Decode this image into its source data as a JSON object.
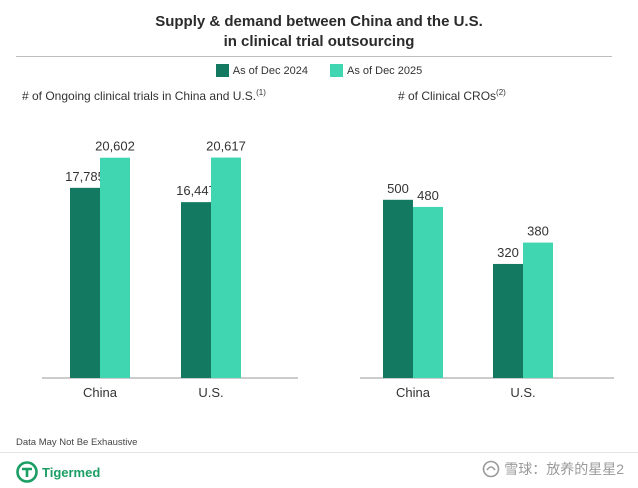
{
  "title_line1": "Supply & demand between China and the U.S.",
  "title_line2": "in clinical trial outsourcing",
  "legend": [
    {
      "label": "As of Dec 2024",
      "color": "#137a61"
    },
    {
      "label": "As of Dec 2025",
      "color": "#40d6b2"
    }
  ],
  "footnote": "Data May Not Be Exhaustive",
  "logo_text": "Tigermed",
  "watermark": "雪球：放养的星星2",
  "chart_data": [
    {
      "type": "bar",
      "title": "# of Ongoing clinical trials in China and U.S.",
      "title_note": "(1)",
      "categories": [
        "China",
        "U.S."
      ],
      "series": [
        {
          "name": "As of Dec 2024",
          "values": [
            17785,
            16447
          ],
          "labels": [
            "17,785",
            "16,447"
          ]
        },
        {
          "name": "As of Dec 2025",
          "values": [
            20602,
            20617
          ],
          "labels": [
            "20,602",
            "20,617"
          ]
        }
      ],
      "ylim": [
        0,
        26000
      ]
    },
    {
      "type": "bar",
      "title": "# of Clinical CROs",
      "title_note": "(2)",
      "categories": [
        "China",
        "U.S."
      ],
      "series": [
        {
          "name": "As of Dec 2024",
          "values": [
            500,
            320
          ],
          "labels": [
            "500",
            "320"
          ]
        },
        {
          "name": "As of Dec 2025",
          "values": [
            480,
            380
          ],
          "labels": [
            "480",
            "380"
          ]
        }
      ],
      "ylim": [
        0,
        780
      ]
    }
  ]
}
